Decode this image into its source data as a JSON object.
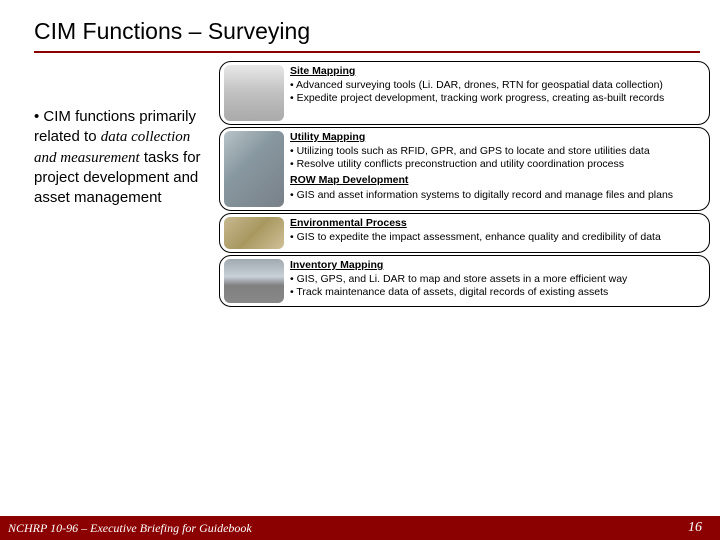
{
  "title": "CIM Functions – Surveying",
  "left_text_pre": "CIM functions primarily related to ",
  "left_text_italic": "data collection and measurement",
  "left_text_post": " tasks for project development and asset management",
  "cards": [
    {
      "title": "Site Mapping",
      "thumb_class": "th-a",
      "bullets": [
        "Advanced surveying tools (Li. DAR, drones, RTN for geospatial data collection)",
        "Expedite project development, tracking work progress, creating as-built records"
      ]
    },
    {
      "title": "Utility Mapping",
      "thumb_class": "th-b",
      "bullets": [
        "Utilizing tools such as RFID, GPR, and GPS to locate and store utilities data",
        "Resolve utility conflicts preconstruction and utility coordination process"
      ],
      "subtitle": "ROW Map Development",
      "sub_bullets": [
        "GIS and asset information systems to digitally record and manage files and plans"
      ]
    },
    {
      "title": "Environmental Process",
      "thumb_class": "th-c",
      "bullets": [
        "GIS to expedite the impact assessment, enhance quality and credibility of data"
      ]
    },
    {
      "title": "Inventory Mapping",
      "thumb_class": "th-d",
      "bullets": [
        "GIS, GPS, and Li. DAR to map and store assets in a more efficient way",
        "Track maintenance data of assets, digital records of existing assets"
      ]
    }
  ],
  "footer_text": "NCHRP 10-96 – Executive Briefing for Guidebook",
  "page_number": "16",
  "colors": {
    "accent": "#8b0000"
  }
}
